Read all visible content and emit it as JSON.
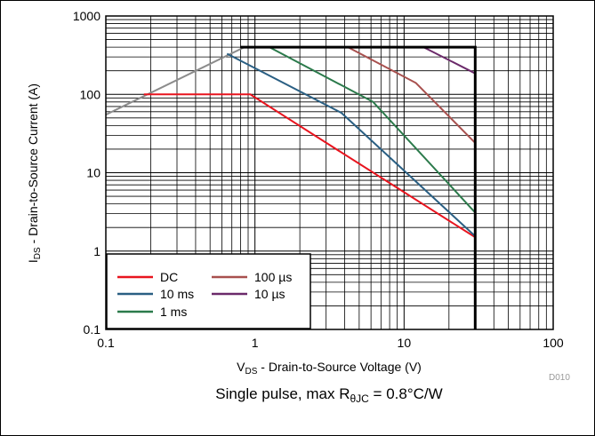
{
  "chart_data": {
    "type": "line",
    "xscale": "log",
    "yscale": "log",
    "xlim": [
      0.1,
      100
    ],
    "ylim": [
      0.1,
      1000
    ],
    "grid": true,
    "xticks": [
      "0.1",
      "1",
      "10",
      "100"
    ],
    "yticks": [
      "0.1",
      "1",
      "10",
      "100",
      "1000"
    ],
    "xlabel": {
      "pre": "V",
      "sub": "DS",
      "post": " - Drain-to-Source Voltage (V)"
    },
    "ylabel": {
      "pre": "I",
      "sub": "DS",
      "post": " - Drain-to-Source Current (A)"
    },
    "figure_code": "D010",
    "caption": {
      "pre": "Single pulse, max R",
      "sub": "θJC",
      "post": " = 0.8°C/W"
    },
    "legend_position": "bottom-left",
    "boundary": {
      "color": "#000000",
      "points": [
        [
          0.8,
          400
        ],
        [
          30,
          400
        ],
        [
          30,
          0.1
        ]
      ]
    },
    "rds_limit": {
      "color": "#8c8c8c",
      "points": [
        [
          0.1,
          55
        ],
        [
          0.85,
          400
        ]
      ]
    },
    "series": [
      {
        "name": "DC",
        "color": "#e8141e",
        "points": [
          [
            0.18,
            100
          ],
          [
            0.93,
            100
          ],
          [
            3.5,
            20
          ],
          [
            30,
            1.5
          ]
        ]
      },
      {
        "name": "10 ms",
        "color": "#2a5f83",
        "points": [
          [
            0.65,
            330
          ],
          [
            3.8,
            58
          ],
          [
            30,
            1.55
          ]
        ]
      },
      {
        "name": "1 ms",
        "color": "#2b7a4b",
        "points": [
          [
            1.25,
            400
          ],
          [
            6.2,
            80
          ],
          [
            30,
            3.1
          ]
        ]
      },
      {
        "name": "100 µs",
        "color": "#a8504e",
        "points": [
          [
            4.2,
            400
          ],
          [
            12,
            140
          ],
          [
            30,
            24
          ]
        ]
      },
      {
        "name": "10 µs",
        "color": "#6b2a6a",
        "points": [
          [
            13.5,
            400
          ],
          [
            30,
            185
          ]
        ]
      }
    ]
  }
}
